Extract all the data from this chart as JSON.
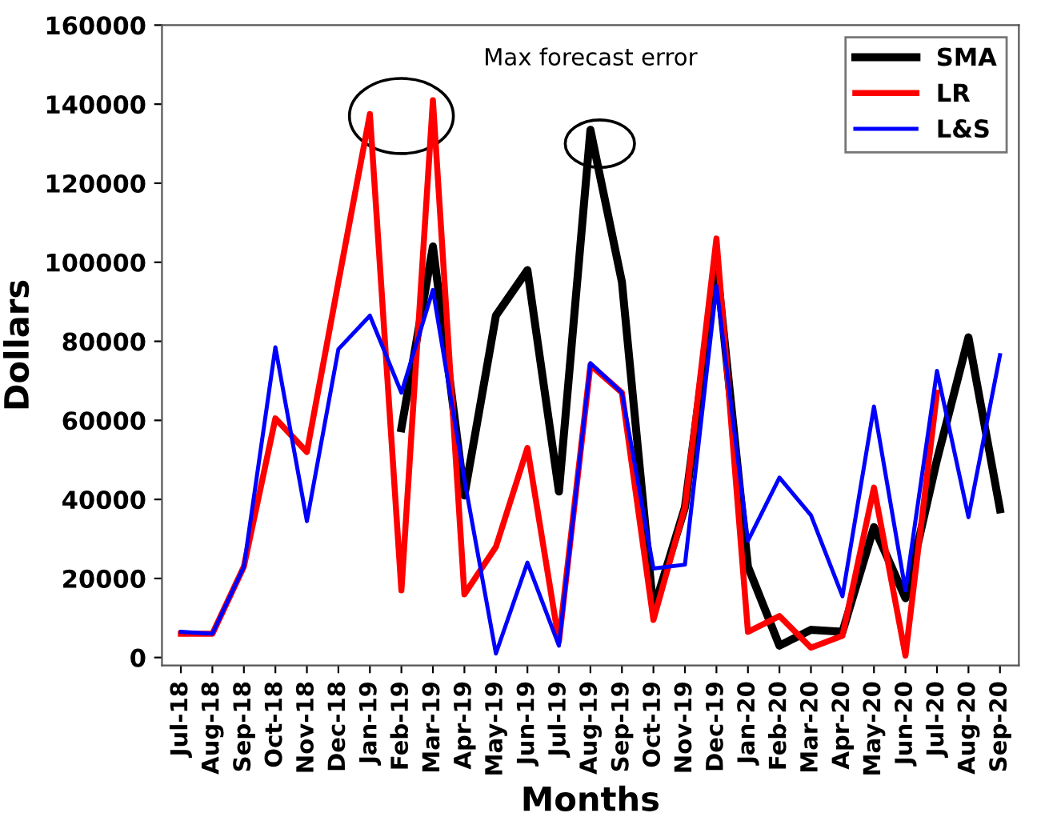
{
  "chart_data": {
    "type": "line",
    "xlabel": "Months",
    "ylabel": "Dollars",
    "categories": [
      "Jul-18",
      "Aug-18",
      "Sep-18",
      "Oct-18",
      "Nov-18",
      "Dec-18",
      "Jan-19",
      "Feb-19",
      "Mar-19",
      "Apr-19",
      "May-19",
      "Jun-19",
      "Jul-19",
      "Aug-19",
      "Sep-19",
      "Oct-19",
      "Nov-19",
      "Dec-19",
      "Jan-20",
      "Feb-20",
      "Mar-20",
      "Apr-20",
      "May-20",
      "Jun-20",
      "Jul-20",
      "Aug-20",
      "Sep-20"
    ],
    "series": [
      {
        "name": "SMA",
        "color": "#000000",
        "values": [
          null,
          null,
          null,
          null,
          null,
          null,
          null,
          58000,
          104000,
          41000,
          86500,
          98000,
          42000,
          133500,
          95000,
          12000,
          38000,
          100000,
          23000,
          3000,
          7000,
          6500,
          33000,
          15000,
          50000,
          81000,
          37500
        ]
      },
      {
        "name": "LR",
        "color": "#ff0000",
        "values": [
          6000,
          6000,
          23000,
          60500,
          52000,
          95000,
          137500,
          17000,
          141000,
          16000,
          28000,
          53000,
          4000,
          74000,
          67000,
          9500,
          38000,
          106000,
          6500,
          10500,
          2500,
          5500,
          43000,
          500,
          67000,
          null,
          null
        ]
      },
      {
        "name": "L&S",
        "color": "#0000ff",
        "values": [
          6500,
          6000,
          23000,
          78500,
          34500,
          78000,
          86500,
          67000,
          93000,
          45000,
          1000,
          24000,
          3000,
          74500,
          67000,
          22500,
          23500,
          94000,
          29500,
          45500,
          36000,
          15500,
          63500,
          17000,
          72500,
          35500,
          76500
        ]
      }
    ],
    "ylim": [
      -2000,
      160000
    ],
    "yticks": [
      0,
      20000,
      40000,
      60000,
      80000,
      100000,
      120000,
      140000,
      160000
    ],
    "annotations": [
      "Max forecast error"
    ],
    "legend": "top right",
    "grid": false,
    "marker": "none",
    "line_style": "solid"
  }
}
